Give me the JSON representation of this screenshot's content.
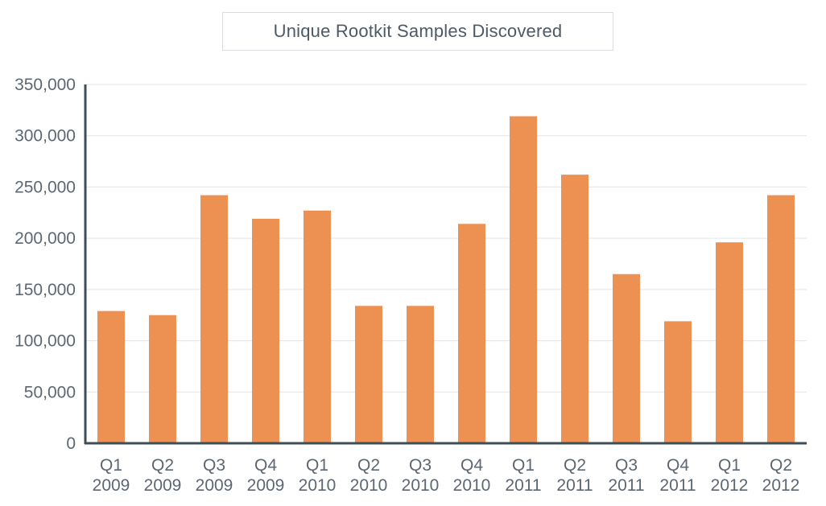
{
  "chart_data": {
    "type": "bar",
    "title": "Unique Rootkit Samples Discovered",
    "categories": [
      [
        "Q1",
        "2009"
      ],
      [
        "Q2",
        "2009"
      ],
      [
        "Q3",
        "2009"
      ],
      [
        "Q4",
        "2009"
      ],
      [
        "Q1",
        "2010"
      ],
      [
        "Q2",
        "2010"
      ],
      [
        "Q3",
        "2010"
      ],
      [
        "Q4",
        "2010"
      ],
      [
        "Q1",
        "2011"
      ],
      [
        "Q2",
        "2011"
      ],
      [
        "Q3",
        "2011"
      ],
      [
        "Q4",
        "2011"
      ],
      [
        "Q1",
        "2012"
      ],
      [
        "Q2",
        "2012"
      ]
    ],
    "values": [
      129000,
      125000,
      242000,
      219000,
      227000,
      134000,
      134000,
      214000,
      319000,
      262000,
      165000,
      119000,
      196000,
      242000
    ],
    "ylim": [
      0,
      350000
    ],
    "yticks": [
      0,
      50000,
      100000,
      150000,
      200000,
      250000,
      300000,
      350000
    ],
    "ytick_labels": [
      "0",
      "50,000",
      "100,000",
      "150,000",
      "200,000",
      "250,000",
      "300,000",
      "350,000"
    ],
    "grid": true,
    "colors": {
      "bar": "#ec9152",
      "grid": "#e1e4e7",
      "axis": "#3f4d59",
      "text": "#5d6773",
      "title_border": "#d9dde1"
    }
  }
}
